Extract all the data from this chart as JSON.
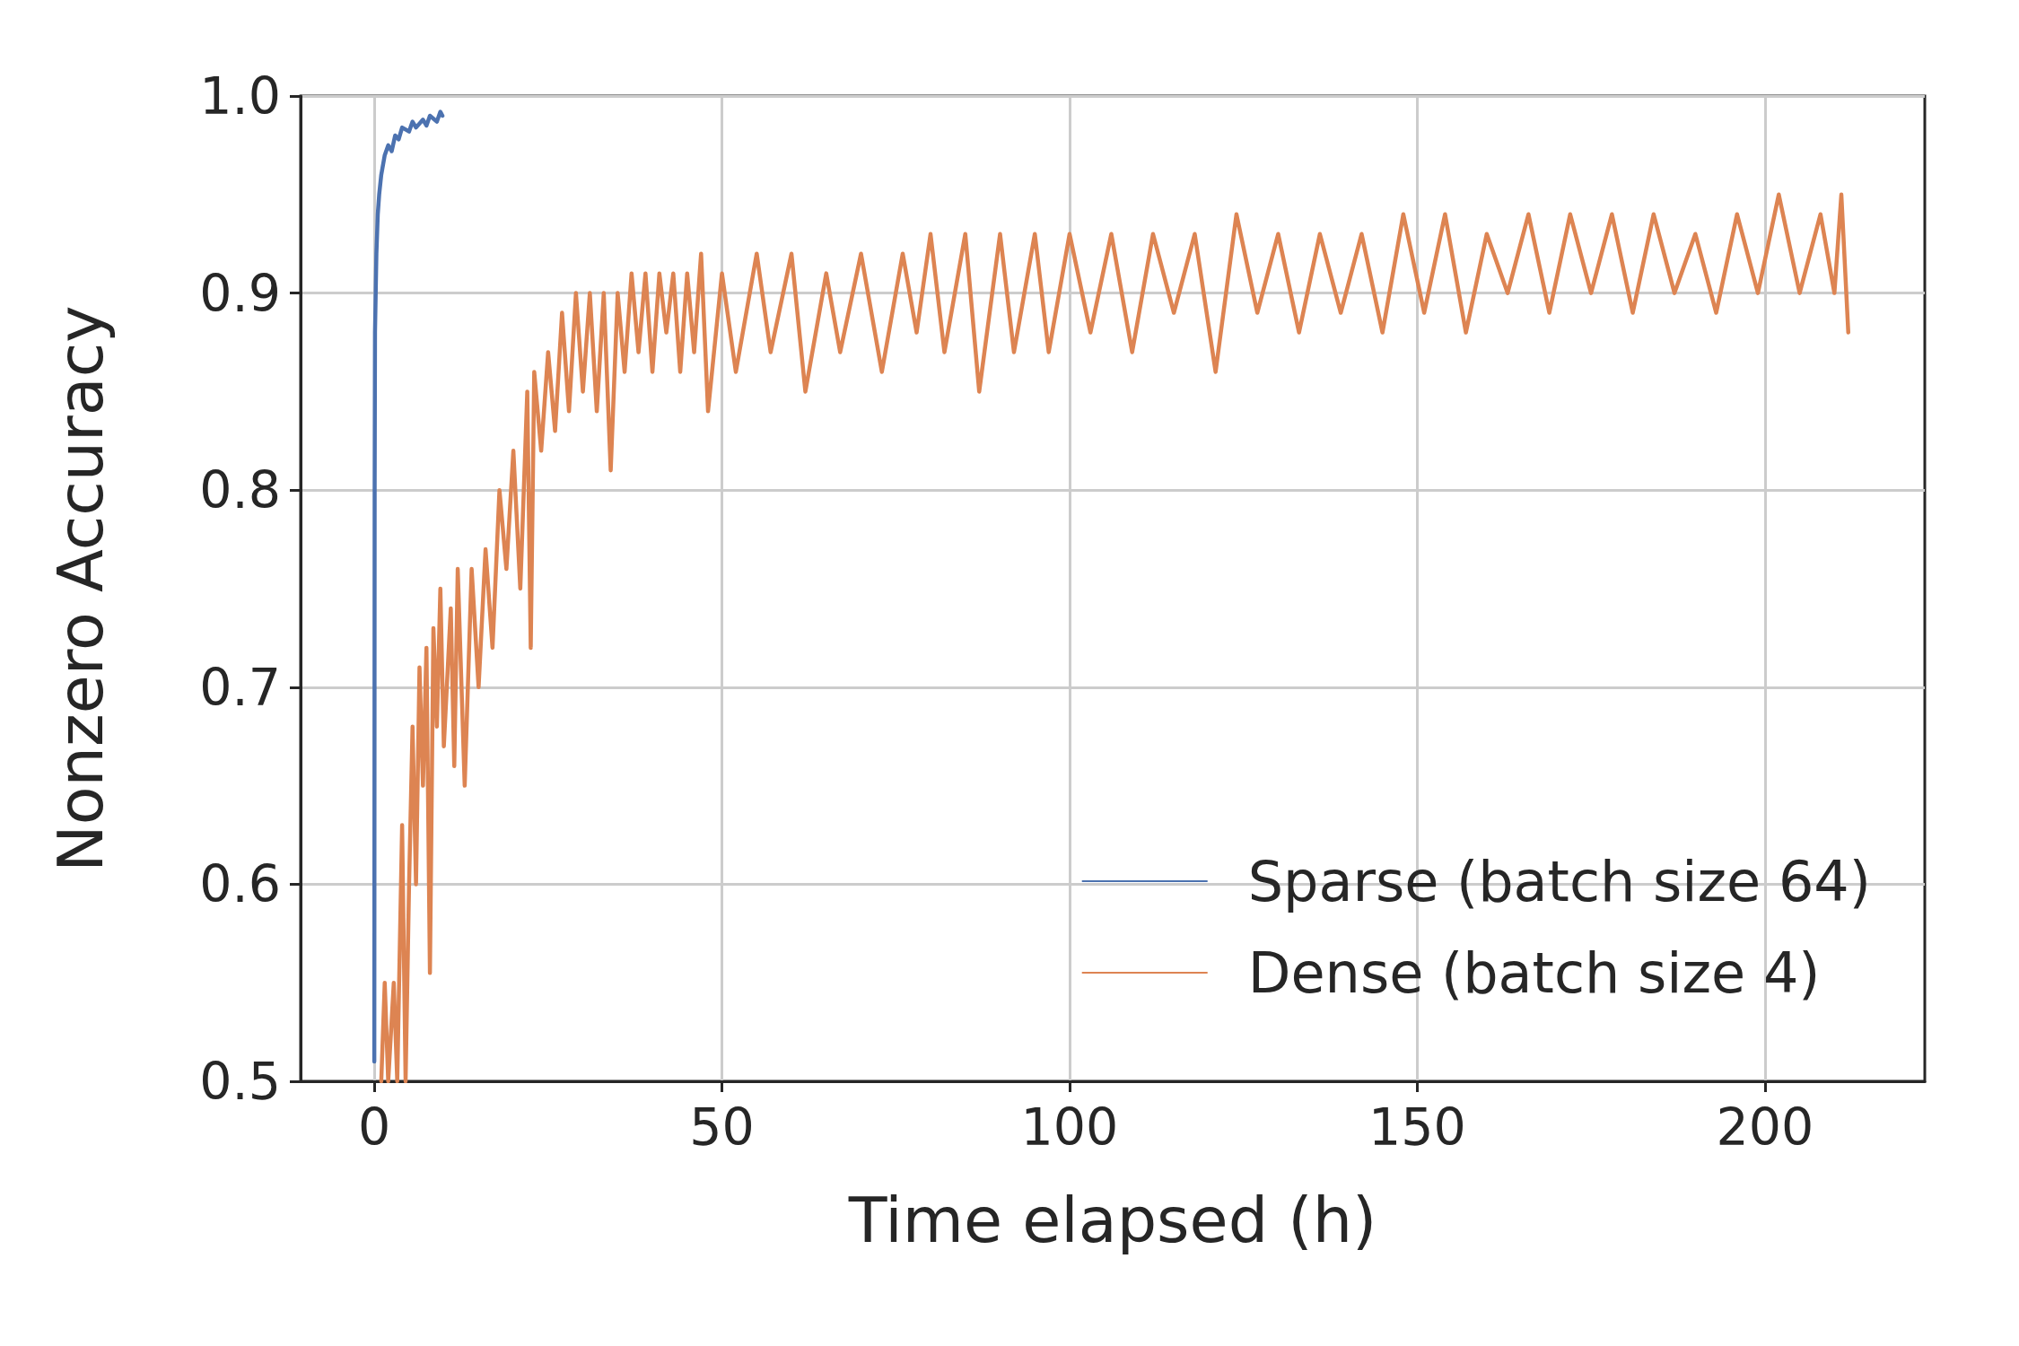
{
  "chart_data": {
    "type": "line",
    "xlabel": "Time elapsed (h)",
    "ylabel": "Nonzero Accuracy",
    "xlim": [
      -10.6,
      223
    ],
    "xticks": [
      0,
      50,
      100,
      150,
      200
    ],
    "ylim": [
      0.5,
      1.0
    ],
    "yticks": [
      {
        "value": 0.5,
        "label": "0.5"
      },
      {
        "value": 0.6,
        "label": "0.6"
      },
      {
        "value": 0.7,
        "label": "0.7"
      },
      {
        "value": 0.8,
        "label": "0.8"
      },
      {
        "value": 0.9,
        "label": "0.9"
      },
      {
        "value": 1.0,
        "label": "1.0"
      }
    ],
    "grid": true,
    "legend": "bottom right",
    "marker": "none",
    "line_style": "solid",
    "series": [
      {
        "name": "Sparse (batch size 64)",
        "color": "#4c72b0",
        "x": [
          0,
          0.05,
          0.1,
          0.2,
          0.3,
          0.5,
          0.7,
          1,
          1.5,
          2,
          2.5,
          3,
          3.5,
          4,
          5,
          5.5,
          6,
          7,
          7.5,
          8,
          9,
          9.5,
          9.8
        ],
        "values": [
          0.51,
          0.8,
          0.88,
          0.9,
          0.92,
          0.94,
          0.95,
          0.96,
          0.97,
          0.975,
          0.972,
          0.98,
          0.978,
          0.984,
          0.982,
          0.987,
          0.984,
          0.988,
          0.985,
          0.99,
          0.987,
          0.992,
          0.99
        ]
      },
      {
        "name": "Dense (batch size 4)",
        "color": "#dd8452",
        "x": [
          1,
          1.5,
          2,
          2.8,
          3.3,
          4,
          4.5,
          5,
          5.5,
          6,
          6.5,
          7,
          7.5,
          8,
          8.5,
          9,
          9.5,
          10,
          11,
          11.5,
          12,
          13,
          14,
          15,
          16,
          17,
          18,
          19,
          20,
          21,
          22,
          22.5,
          23,
          24,
          25,
          26,
          27,
          28,
          29,
          30,
          31,
          32,
          33,
          34,
          35,
          36,
          37,
          38,
          39,
          40,
          41,
          42,
          43,
          44,
          45,
          46,
          47,
          48,
          50,
          52,
          55,
          57,
          60,
          62,
          65,
          67,
          70,
          73,
          76,
          78,
          80,
          82,
          85,
          87,
          90,
          92,
          95,
          97,
          100,
          103,
          106,
          109,
          112,
          115,
          118,
          121,
          124,
          127,
          130,
          133,
          136,
          139,
          142,
          145,
          148,
          151,
          154,
          157,
          160,
          163,
          166,
          169,
          172,
          175,
          178,
          181,
          184,
          187,
          190,
          193,
          196,
          199,
          202,
          205,
          208,
          210,
          211,
          212
        ],
        "values": [
          0.5,
          0.55,
          0.5,
          0.55,
          0.5,
          0.63,
          0.5,
          0.6,
          0.68,
          0.6,
          0.71,
          0.65,
          0.72,
          0.555,
          0.73,
          0.68,
          0.75,
          0.67,
          0.74,
          0.66,
          0.76,
          0.65,
          0.76,
          0.7,
          0.77,
          0.72,
          0.8,
          0.76,
          0.82,
          0.75,
          0.85,
          0.72,
          0.86,
          0.82,
          0.87,
          0.83,
          0.89,
          0.84,
          0.9,
          0.85,
          0.9,
          0.84,
          0.9,
          0.81,
          0.9,
          0.86,
          0.91,
          0.87,
          0.91,
          0.86,
          0.91,
          0.88,
          0.91,
          0.86,
          0.91,
          0.87,
          0.92,
          0.84,
          0.91,
          0.86,
          0.92,
          0.87,
          0.92,
          0.85,
          0.91,
          0.87,
          0.92,
          0.86,
          0.92,
          0.88,
          0.93,
          0.87,
          0.93,
          0.85,
          0.93,
          0.87,
          0.93,
          0.87,
          0.93,
          0.88,
          0.93,
          0.87,
          0.93,
          0.89,
          0.93,
          0.86,
          0.94,
          0.89,
          0.93,
          0.88,
          0.93,
          0.89,
          0.93,
          0.88,
          0.94,
          0.89,
          0.94,
          0.88,
          0.93,
          0.9,
          0.94,
          0.89,
          0.94,
          0.9,
          0.94,
          0.89,
          0.94,
          0.9,
          0.93,
          0.89,
          0.94,
          0.9,
          0.95,
          0.9,
          0.94,
          0.9,
          0.95,
          0.88
        ]
      }
    ]
  }
}
